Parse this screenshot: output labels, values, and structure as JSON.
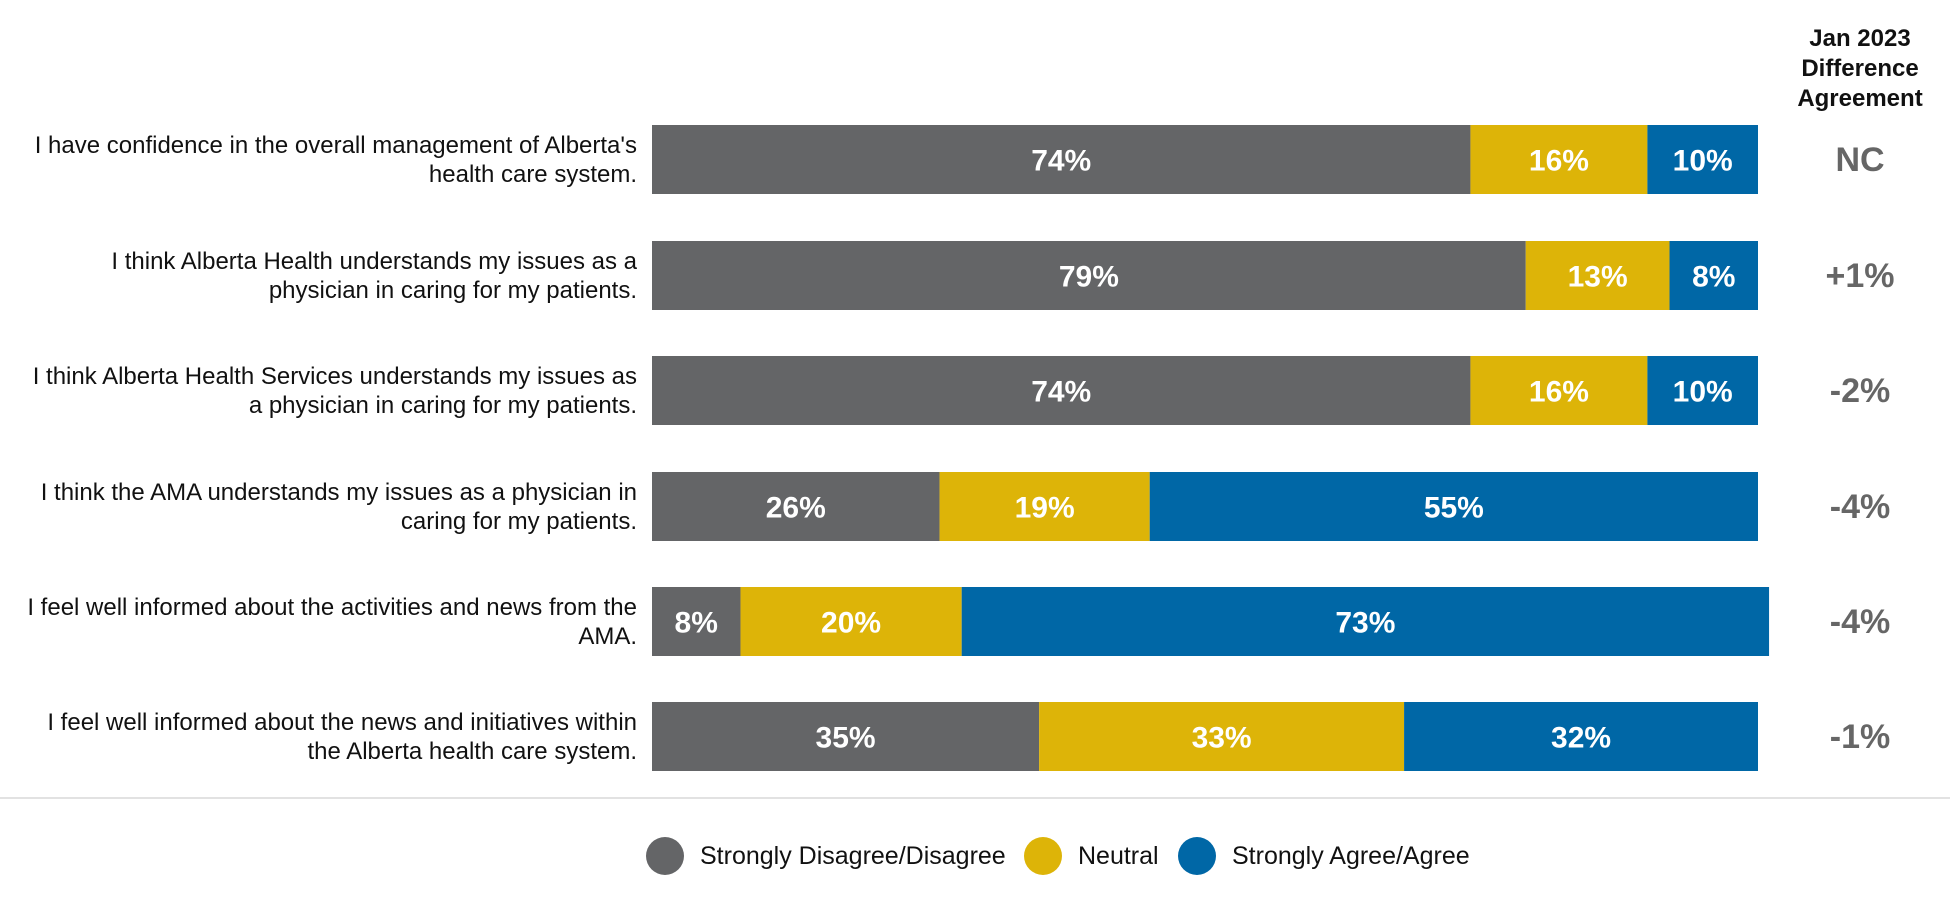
{
  "chart_data": {
    "type": "bar",
    "orientation": "horizontal",
    "stacked": true,
    "categories": [
      "I have confidence in the overall management of Alberta's health care system.",
      "I think Alberta Health understands my issues as a physician in caring for my patients.",
      "I think Alberta Health Services understands my issues as a physician in caring for my patients.",
      "I think the AMA understands my issues as a physician in caring for my patients.",
      "I feel well informed about the activities and news from the AMA.",
      "I feel well informed about the news and initiatives within the Alberta health care system."
    ],
    "category_lines": [
      [
        "I have confidence in the overall management of Alberta's",
        "health care system."
      ],
      [
        "I think Alberta Health understands my issues as a",
        "physician in caring for my patients."
      ],
      [
        "I think Alberta Health Services understands my issues as",
        "a physician in caring for my patients."
      ],
      [
        "I think the AMA understands my issues as a physician in",
        "caring for my patients."
      ],
      [
        "I feel well informed about the activities and news from the",
        "AMA."
      ],
      [
        "I feel well informed about the news and initiatives within",
        "the Alberta health care system."
      ]
    ],
    "series": [
      {
        "name": "Strongly Disagree/Disagree",
        "color": "#646567",
        "values": [
          74,
          79,
          74,
          26,
          8,
          35
        ],
        "labels": [
          "74%",
          "79%",
          "74%",
          "26%",
          "8%",
          "35%"
        ]
      },
      {
        "name": "Neutral",
        "color": "#DDB408",
        "values": [
          16,
          13,
          16,
          19,
          20,
          33
        ],
        "labels": [
          "16%",
          "13%",
          "16%",
          "19%",
          "20%",
          "33%"
        ]
      },
      {
        "name": "Strongly Agree/Agree",
        "color": "#0067A6",
        "values": [
          10,
          8,
          10,
          55,
          73,
          32
        ],
        "labels": [
          "10%",
          "8%",
          "10%",
          "55%",
          "73%",
          "32%"
        ]
      }
    ],
    "xlim": [
      0,
      100
    ],
    "legend_position": "bottom",
    "grid": false
  },
  "difference_column": {
    "header_lines": [
      "Jan 2023",
      "Difference",
      "Agreement"
    ],
    "values": [
      "NC",
      "+1%",
      "-2%",
      "-4%",
      "-4%",
      "-1%"
    ],
    "color": "#666666"
  },
  "legend": [
    {
      "label": "Strongly Disagree/Disagree",
      "color": "#646567"
    },
    {
      "label": "Neutral",
      "color": "#DDB408"
    },
    {
      "label": "Strongly Agree/Agree",
      "color": "#0067A6"
    }
  ]
}
